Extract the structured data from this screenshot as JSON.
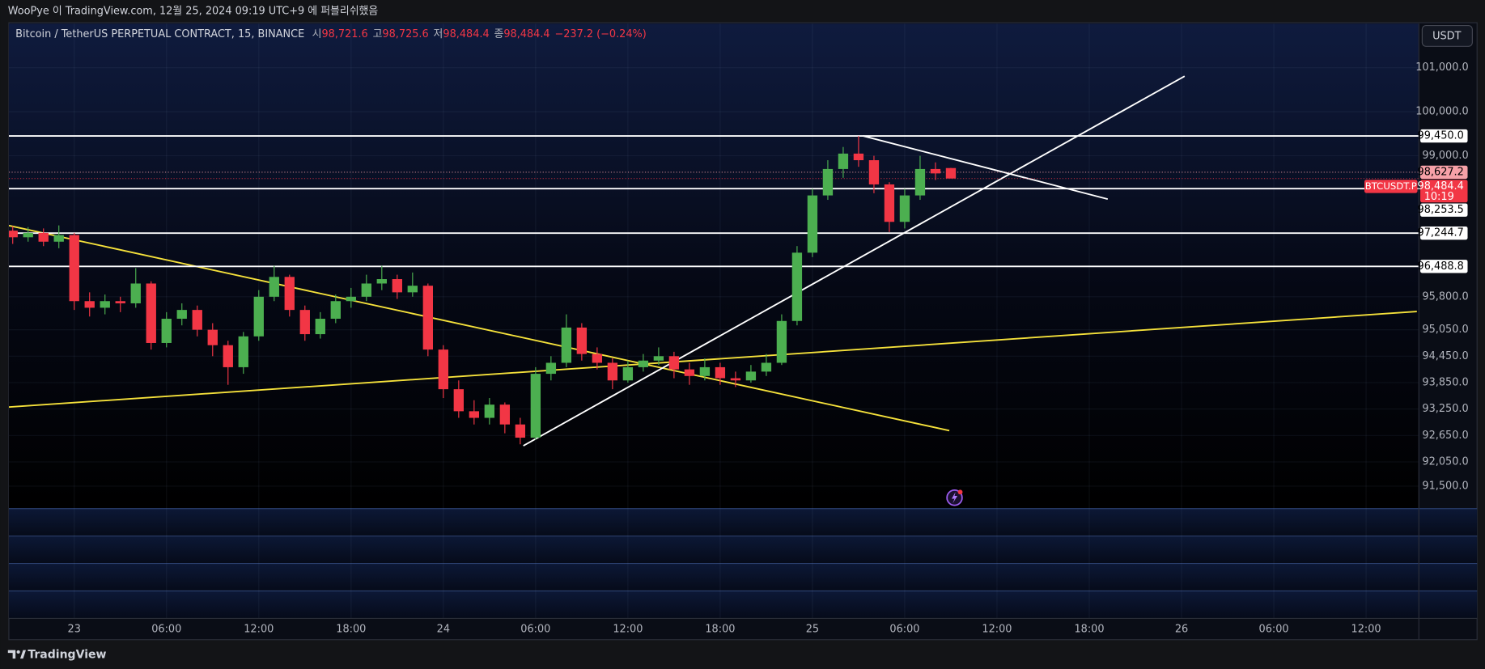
{
  "publish_note": "WooPye 이 TradingView.com, 12월 25, 2024 09:19 UTC+9 에 퍼블리쉬했음",
  "brand": "TradingView",
  "chart_data": {
    "type": "candlestick",
    "title": "Bitcoin / TetherUS PERPETUAL CONTRACT, 15, BINANCE",
    "ohlc_header": [
      {
        "label": "시",
        "value": "98,721.6"
      },
      {
        "label": "고",
        "value": "98,725.6"
      },
      {
        "label": "저",
        "value": "98,484.4"
      },
      {
        "label": "종",
        "value": "98,484.4"
      }
    ],
    "change": "−237.2 (−0.24%)",
    "currency": "USDT",
    "symbol_tag": "BTCUSDT.P",
    "countdown": "10:19",
    "up_color": "#4caf50",
    "down_color": "#f23645",
    "xlim": [
      -4.25,
      87.4
    ],
    "xticks": [
      {
        "value": 0,
        "label": "23"
      },
      {
        "value": 6,
        "label": "06:00"
      },
      {
        "value": 12,
        "label": "12:00"
      },
      {
        "value": 18,
        "label": "18:00"
      },
      {
        "value": 24,
        "label": "24"
      },
      {
        "value": 30,
        "label": "06:00"
      },
      {
        "value": 36,
        "label": "12:00"
      },
      {
        "value": 42,
        "label": "18:00"
      },
      {
        "value": 48,
        "label": "25"
      },
      {
        "value": 54,
        "label": "06:00"
      },
      {
        "value": 60,
        "label": "12:00"
      },
      {
        "value": 66,
        "label": "18:00"
      },
      {
        "value": 72,
        "label": "26"
      },
      {
        "value": 78,
        "label": "06:00"
      },
      {
        "value": 84,
        "label": "12:00"
      }
    ],
    "ylim": [
      91000,
      102000
    ],
    "yticks": [
      {
        "value": 101000,
        "label": "101,000.0"
      },
      {
        "value": 100000,
        "label": "100,000.0"
      },
      {
        "value": 99000,
        "label": "99,000.0"
      },
      {
        "value": 95800,
        "label": "95,800.0"
      },
      {
        "value": 95050,
        "label": "95,050.0"
      },
      {
        "value": 94450,
        "label": "94,450.0"
      },
      {
        "value": 93850,
        "label": "93,850.0"
      },
      {
        "value": 93250,
        "label": "93,250.0"
      },
      {
        "value": 92650,
        "label": "92,650.0"
      },
      {
        "value": 92050,
        "label": "92,050.0"
      },
      {
        "value": 91500,
        "label": "91,500.0"
      }
    ],
    "grid": true,
    "x": [
      -4,
      -3,
      -2,
      -1,
      0,
      1,
      2,
      3,
      4,
      5,
      6,
      7,
      8,
      9,
      10,
      11,
      12,
      13,
      14,
      15,
      16,
      17,
      18,
      19,
      20,
      21,
      22,
      23,
      24,
      25,
      26,
      27,
      28,
      29,
      30,
      31,
      32,
      33,
      34,
      35,
      36,
      37,
      38,
      39,
      40,
      41,
      42,
      43,
      44,
      45,
      46,
      47,
      48,
      49,
      50,
      51,
      52,
      53,
      54,
      55,
      56,
      57
    ],
    "open": [
      97300,
      97150,
      97250,
      97050,
      97200,
      95700,
      95550,
      95700,
      95650,
      96100,
      94750,
      95300,
      95500,
      95050,
      94700,
      94200,
      94900,
      95800,
      96250,
      95500,
      94950,
      95300,
      95700,
      95800,
      96100,
      96200,
      95900,
      96050,
      94600,
      93700,
      93200,
      93050,
      93350,
      92900,
      92600,
      94050,
      94300,
      95100,
      94500,
      94300,
      93900,
      94200,
      94350,
      94450,
      94150,
      94000,
      94200,
      93950,
      93900,
      94100,
      94300,
      95250,
      96800,
      98100,
      98700,
      99050,
      98900,
      98350,
      97500,
      98100,
      98700,
      98721.6
    ],
    "high": [
      97400,
      97380,
      97350,
      97420,
      97250,
      95900,
      95850,
      95800,
      96450,
      96150,
      95450,
      95650,
      95600,
      95200,
      94800,
      95000,
      95950,
      96500,
      96300,
      95600,
      95450,
      95850,
      96000,
      96300,
      96500,
      96300,
      96350,
      96100,
      94700,
      93900,
      93450,
      93500,
      93400,
      93050,
      94200,
      94450,
      95400,
      95200,
      94650,
      94400,
      94350,
      94500,
      94650,
      94550,
      94300,
      94400,
      94300,
      94100,
      94250,
      94500,
      95400,
      96950,
      98250,
      98900,
      99200,
      99450,
      99000,
      98400,
      98250,
      99000,
      98850,
      98725.6
    ],
    "low": [
      97000,
      97050,
      96950,
      96900,
      95500,
      95350,
      95400,
      95450,
      95550,
      94600,
      94650,
      95150,
      94900,
      94450,
      93800,
      94050,
      94800,
      95700,
      95350,
      94800,
      94850,
      95200,
      95550,
      95700,
      95950,
      95750,
      95800,
      94450,
      93500,
      93050,
      92900,
      92900,
      92700,
      92450,
      92550,
      93900,
      94200,
      94350,
      94150,
      93700,
      93850,
      94100,
      94250,
      93950,
      93800,
      93900,
      93800,
      93750,
      93850,
      94000,
      94250,
      95150,
      96700,
      98000,
      98500,
      98750,
      98150,
      97270,
      97350,
      98000,
      98450,
      98484.4
    ],
    "close": [
      97150,
      97250,
      97050,
      97200,
      95700,
      95550,
      95700,
      95650,
      96100,
      94750,
      95300,
      95500,
      95050,
      94700,
      94200,
      94900,
      95800,
      96250,
      95500,
      94950,
      95300,
      95700,
      95800,
      96100,
      96200,
      95900,
      96050,
      94600,
      93700,
      93200,
      93050,
      93350,
      92900,
      92600,
      94050,
      94300,
      95100,
      94500,
      94300,
      93900,
      94200,
      94350,
      94450,
      94150,
      94000,
      94200,
      93950,
      93900,
      94100,
      94300,
      95250,
      96800,
      98100,
      98700,
      99050,
      98900,
      98350,
      97500,
      98100,
      98700,
      98600,
      98484.4
    ],
    "price_lines": [
      {
        "value": 99450,
        "label": "99,450.0",
        "style": "solid",
        "color": "#ffffff"
      },
      {
        "value": 98627.2,
        "label": "98,627.2",
        "style": "dotted",
        "color": "#f7a1a8"
      },
      {
        "value": 98484.4,
        "label": "98,484.4",
        "style": "dotted",
        "color": "#f23645"
      },
      {
        "value": 98253.5,
        "label": "98,253.5",
        "style": "solid",
        "color": "#ffffff"
      },
      {
        "value": 97244.7,
        "label": "97,244.7",
        "style": "solid",
        "color": "#ffffff"
      },
      {
        "value": 96488.8,
        "label": "96,488.8",
        "style": "solid",
        "color": "#ffffff"
      }
    ],
    "trend_lines": [
      {
        "color": "#f5e13b",
        "x": [
          -4.25,
          56.9
        ],
        "y": [
          97416,
          92760
        ]
      },
      {
        "color": "#f5e13b",
        "x": [
          -4.25,
          87.3
        ],
        "y": [
          93296,
          95464
        ]
      },
      {
        "color": "#ffffff",
        "x": [
          29.2,
          72.2
        ],
        "y": [
          92416,
          100807
        ]
      },
      {
        "color": "#ffffff",
        "x": [
          51.3,
          67.2
        ],
        "y": [
          99450,
          98017
        ]
      }
    ]
  }
}
